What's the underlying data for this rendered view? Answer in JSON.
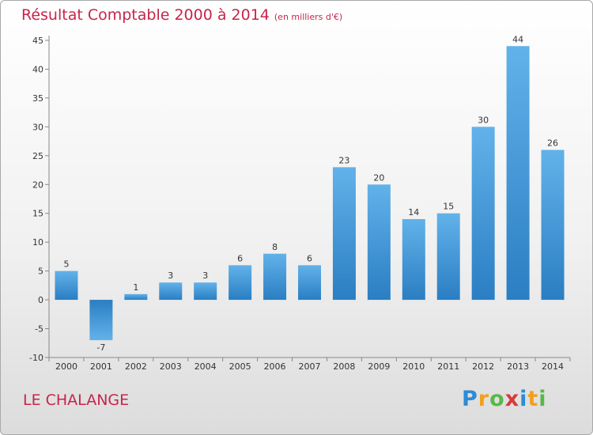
{
  "title": "Résultat Comptable 2000 à 2014",
  "subtitle": "(en milliers d'€)",
  "commune": "LE CHALANGE",
  "logo": {
    "letters": [
      "P",
      "r",
      "o",
      "x",
      "i",
      "t",
      "i"
    ],
    "colors": [
      "#2e8bd6",
      "#f0a020",
      "#58b848",
      "#d83a3a",
      "#2e8bd6",
      "#f0a020",
      "#58b848"
    ]
  },
  "colors": {
    "title": "#c8244a",
    "bar_light": "#62b2ea",
    "bar_dark": "#2a7ec2",
    "axis": "#888888"
  },
  "chart_data": {
    "type": "bar",
    "title": "Résultat Comptable 2000 à 2014",
    "subtitle": "(en milliers d'€)",
    "categories": [
      "2000",
      "2001",
      "2002",
      "2003",
      "2004",
      "2005",
      "2006",
      "2007",
      "2008",
      "2009",
      "2010",
      "2011",
      "2012",
      "2013",
      "2014"
    ],
    "values": [
      5,
      -7,
      1,
      3,
      3,
      6,
      8,
      6,
      23,
      20,
      14,
      15,
      30,
      44,
      26
    ],
    "ylim": [
      -10,
      45
    ],
    "yticks": [
      -10,
      -5,
      0,
      5,
      10,
      15,
      20,
      25,
      30,
      35,
      40,
      45
    ],
    "grid": false,
    "legend": "none"
  }
}
